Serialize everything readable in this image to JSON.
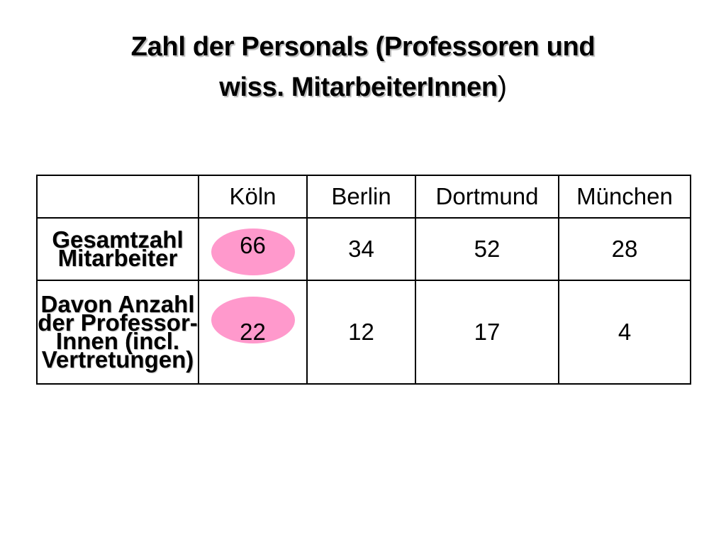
{
  "title": {
    "line1": "Zahl der Personals (Professoren und",
    "line2": "wiss. MitarbeiterInnen",
    "closing": ")"
  },
  "table": {
    "headers": [
      "",
      "Köln",
      "Berlin",
      "Dortmund",
      "München"
    ],
    "rows": [
      {
        "label_lines": [
          "Gesamtzahl",
          "Mitarbeiter"
        ],
        "values": [
          "66",
          "34",
          "52",
          "28"
        ]
      },
      {
        "label_lines": [
          "Davon Anzahl",
          "der Professor-",
          "Innen (incl.",
          "Vertretungen)"
        ],
        "values": [
          "22",
          "12",
          "17",
          "4"
        ]
      }
    ],
    "highlight_color": "#ff99cc"
  }
}
